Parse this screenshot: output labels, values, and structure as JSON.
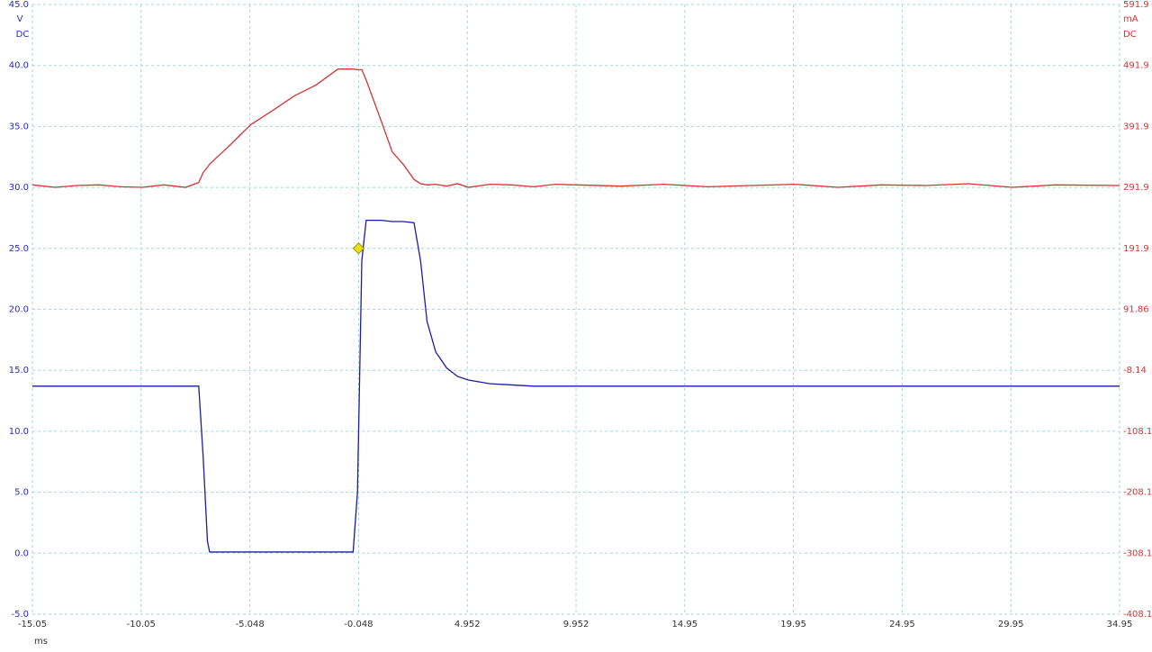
{
  "chart_data": {
    "type": "line",
    "y_label": [
      "V",
      "DC"
    ],
    "y2_label": [
      "mA",
      "DC"
    ],
    "x_label": "ms",
    "x": [
      -15.05,
      -14,
      -13,
      -12,
      -11,
      -10,
      -9,
      -8,
      -7.4,
      -7.2,
      -7.0,
      -6.9,
      -6,
      -5,
      -4,
      -3,
      -2,
      -1,
      -0.3,
      -0.1,
      0.1,
      0.3,
      1,
      1.5,
      2,
      2.5,
      2.8,
      3.1,
      3.5,
      4,
      4.5,
      5,
      6,
      7,
      8,
      9,
      10,
      12,
      14,
      16,
      18,
      20,
      22,
      24,
      26,
      28,
      30,
      32,
      34.95
    ],
    "series": [
      {
        "name": "V",
        "color": "#1c1c9c",
        "axis": "y",
        "values": [
          13.7,
          13.7,
          13.7,
          13.7,
          13.7,
          13.7,
          13.7,
          13.7,
          13.7,
          8,
          1,
          0.1,
          0.1,
          0.1,
          0.1,
          0.1,
          0.1,
          0.1,
          0.1,
          5,
          24,
          27.3,
          27.3,
          27.2,
          27.2,
          27.1,
          24,
          19,
          16.5,
          15.2,
          14.5,
          14.2,
          13.9,
          13.8,
          13.7,
          13.7,
          13.7,
          13.7,
          13.7,
          13.7,
          13.7,
          13.7,
          13.7,
          13.7,
          13.7,
          13.7,
          13.7,
          13.7,
          13.7
        ]
      },
      {
        "name": "mA",
        "color": "#d03535",
        "axis": "y2",
        "values": [
          296,
          292,
          295,
          296,
          293,
          292,
          296,
          292,
          300,
          316,
          325,
          330,
          360,
          395,
          418,
          442,
          460,
          486,
          486,
          485,
          485,
          468,
          400,
          350,
          330,
          305,
          298,
          296,
          297,
          294,
          298,
          292,
          297,
          296,
          293,
          297,
          296,
          294,
          297,
          293,
          295,
          297,
          292,
          296,
          295,
          298,
          292,
          296,
          295
        ]
      }
    ],
    "trigger": {
      "x": -0.048,
      "y": 25,
      "color": "#e8e010"
    },
    "xlim": [
      -15.05,
      34.95
    ],
    "xticks": [
      -15.05,
      -10.05,
      -5.048,
      -0.048,
      4.952,
      9.952,
      14.95,
      19.95,
      24.95,
      29.95,
      34.95
    ],
    "ylim": [
      -5,
      45
    ],
    "yticks": [
      {
        "value": 45,
        "label": "45.0"
      },
      {
        "value": 40,
        "label": "40.0"
      },
      {
        "value": 35,
        "label": "35.0"
      },
      {
        "value": 30,
        "label": "30.0"
      },
      {
        "value": 25,
        "label": "25.0"
      },
      {
        "value": 20,
        "label": "20.0"
      },
      {
        "value": 15,
        "label": "15.0"
      },
      {
        "value": 10,
        "label": "10.0"
      },
      {
        "value": 5,
        "label": "5.0"
      },
      {
        "value": 0,
        "label": "0.0"
      },
      {
        "value": -5,
        "label": "-5.0"
      }
    ],
    "y2lim": [
      -408.1,
      591.9
    ],
    "y2ticks": [
      591.9,
      491.9,
      391.9,
      291.9,
      191.9,
      91.86,
      -8.14,
      -108.1,
      -208.1,
      -308.1,
      -408.1
    ],
    "grid": true
  }
}
